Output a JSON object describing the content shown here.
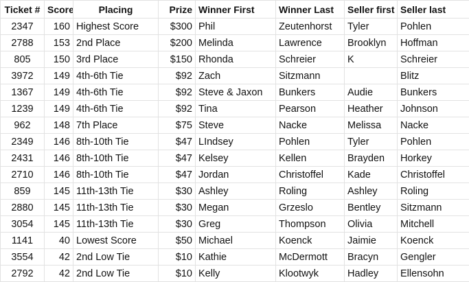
{
  "headers": [
    "Ticket #",
    "Score",
    "Placing",
    "Prize",
    "Winner First",
    "Winner Last",
    "Seller first",
    "Seller last"
  ],
  "rows": [
    [
      "2347",
      "160",
      "Highest Score",
      "$300",
      "Phil",
      "Zeutenhorst",
      "Tyler",
      "Pohlen"
    ],
    [
      "2788",
      "153",
      "2nd Place",
      "$200",
      "Melinda",
      "Lawrence",
      "Brooklyn",
      "Hoffman"
    ],
    [
      "805",
      "150",
      "3rd Place",
      "$150",
      "Rhonda",
      "Schreier",
      "K",
      "Schreier"
    ],
    [
      "3972",
      "149",
      "4th-6th Tie",
      "$92",
      "Zach",
      "Sitzmann",
      "",
      "Blitz"
    ],
    [
      "1367",
      "149",
      "4th-6th Tie",
      "$92",
      "Steve & Jaxon",
      "Bunkers",
      "Audie",
      "Bunkers"
    ],
    [
      "1239",
      "149",
      "4th-6th Tie",
      "$92",
      "Tina",
      "Pearson",
      "Heather",
      "Johnson"
    ],
    [
      "962",
      "148",
      "7th Place",
      "$75",
      "Steve",
      "Nacke",
      "Melissa",
      "Nacke"
    ],
    [
      "2349",
      "146",
      "8th-10th Tie",
      "$47",
      "LIndsey",
      "Pohlen",
      "Tyler",
      "Pohlen"
    ],
    [
      "2431",
      "146",
      "8th-10th Tie",
      "$47",
      "Kelsey",
      "Kellen",
      "Brayden",
      "Horkey"
    ],
    [
      "2710",
      "146",
      "8th-10th Tie",
      "$47",
      "Jordan",
      "Christoffel",
      "Kade",
      "Christoffel"
    ],
    [
      "859",
      "145",
      "11th-13th Tie",
      "$30",
      "Ashley",
      "Roling",
      "Ashley",
      "Roling"
    ],
    [
      "2880",
      "145",
      "11th-13th Tie",
      "$30",
      "Megan",
      "Grzeslo",
      "Bentley",
      "Sitzmann"
    ],
    [
      "3054",
      "145",
      "11th-13th Tie",
      "$30",
      "Greg",
      "Thompson",
      "Olivia",
      "Mitchell"
    ],
    [
      "1141",
      "40",
      "Lowest Score",
      "$50",
      "Michael",
      "Koenck",
      "Jaimie",
      "Koenck"
    ],
    [
      "3554",
      "42",
      "2nd Low Tie",
      "$10",
      "Kathie",
      "McDermott",
      "Bracyn",
      "Gengler"
    ],
    [
      "2792",
      "42",
      "2nd Low Tie",
      "$10",
      "Kelly",
      "Klootwyk",
      "Hadley",
      "Ellensohn"
    ]
  ]
}
